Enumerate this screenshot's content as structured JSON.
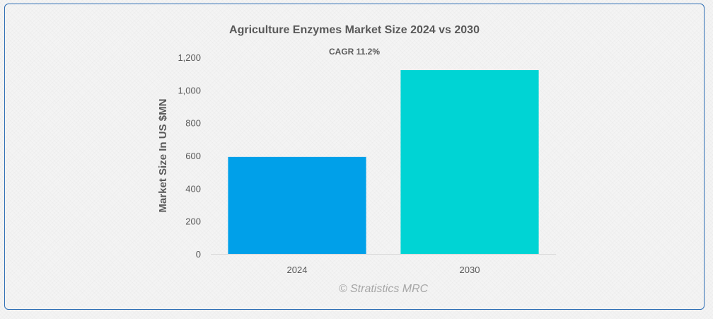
{
  "chart_data": {
    "type": "bar",
    "title": "Agriculture Enzymes Market Size 2024 vs 2030",
    "subtitle": "CAGR 11.2%",
    "categories": [
      "2024",
      "2030"
    ],
    "values": [
      592,
      1122
    ],
    "colors": [
      "#00a0e9",
      "#00d4d4"
    ],
    "xlabel": "",
    "ylabel": "Market Size In US $MN",
    "ylim": [
      0,
      1200
    ],
    "yticks": [
      0,
      200,
      400,
      600,
      800,
      1000,
      1200
    ],
    "ytick_labels": [
      "0",
      "200",
      "400",
      "600",
      "800",
      "1,000",
      "1,200"
    ],
    "grid": false,
    "legend": "none"
  },
  "watermark": "© Stratistics MRC"
}
